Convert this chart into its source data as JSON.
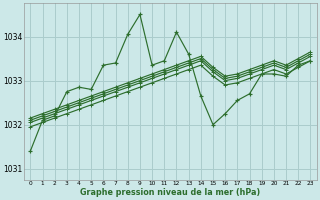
{
  "background_color": "#cce8e8",
  "grid_color": "#aacccc",
  "line_color": "#2d6e2d",
  "ylabel_values": [
    1031,
    1032,
    1033,
    1034
  ],
  "xlabel_values": [
    0,
    1,
    2,
    3,
    4,
    5,
    6,
    7,
    8,
    9,
    10,
    11,
    12,
    13,
    14,
    15,
    16,
    17,
    18,
    19,
    20,
    21,
    22,
    23
  ],
  "xlabel_label": "Graphe pression niveau de la mer (hPa)",
  "volatile_series": [
    1031.4,
    1032.1,
    1032.2,
    1032.75,
    1032.85,
    1032.8,
    1033.35,
    1033.4,
    1034.05,
    1034.5,
    1033.35,
    1033.45,
    1034.1,
    1033.6,
    1032.65,
    1032.0,
    1032.25,
    1032.55,
    1032.7,
    1033.15,
    1033.15,
    1033.1,
    1033.35,
    1033.45
  ],
  "smooth_series": [
    [
      1031.95,
      1032.05,
      1032.15,
      1032.25,
      1032.35,
      1032.45,
      1032.55,
      1032.65,
      1032.75,
      1032.85,
      1032.95,
      1033.05,
      1033.15,
      1033.25,
      1033.35,
      1033.1,
      1032.9,
      1032.95,
      1033.05,
      1033.15,
      1033.25,
      1033.15,
      1033.3,
      1033.45
    ],
    [
      1032.05,
      1032.15,
      1032.25,
      1032.35,
      1032.45,
      1032.55,
      1032.65,
      1032.75,
      1032.85,
      1032.95,
      1033.05,
      1033.15,
      1033.25,
      1033.35,
      1033.45,
      1033.2,
      1033.0,
      1033.05,
      1033.15,
      1033.25,
      1033.35,
      1033.25,
      1033.4,
      1033.55
    ],
    [
      1032.1,
      1032.2,
      1032.3,
      1032.4,
      1032.5,
      1032.6,
      1032.7,
      1032.8,
      1032.9,
      1033.0,
      1033.1,
      1033.2,
      1033.3,
      1033.4,
      1033.5,
      1033.25,
      1033.05,
      1033.1,
      1033.2,
      1033.3,
      1033.4,
      1033.3,
      1033.45,
      1033.6
    ],
    [
      1032.15,
      1032.25,
      1032.35,
      1032.45,
      1032.55,
      1032.65,
      1032.75,
      1032.85,
      1032.95,
      1033.05,
      1033.15,
      1033.25,
      1033.35,
      1033.45,
      1033.55,
      1033.3,
      1033.1,
      1033.15,
      1033.25,
      1033.35,
      1033.45,
      1033.35,
      1033.5,
      1033.65
    ]
  ],
  "ylim": [
    1030.75,
    1034.75
  ],
  "xlim": [
    -0.5,
    23.5
  ]
}
